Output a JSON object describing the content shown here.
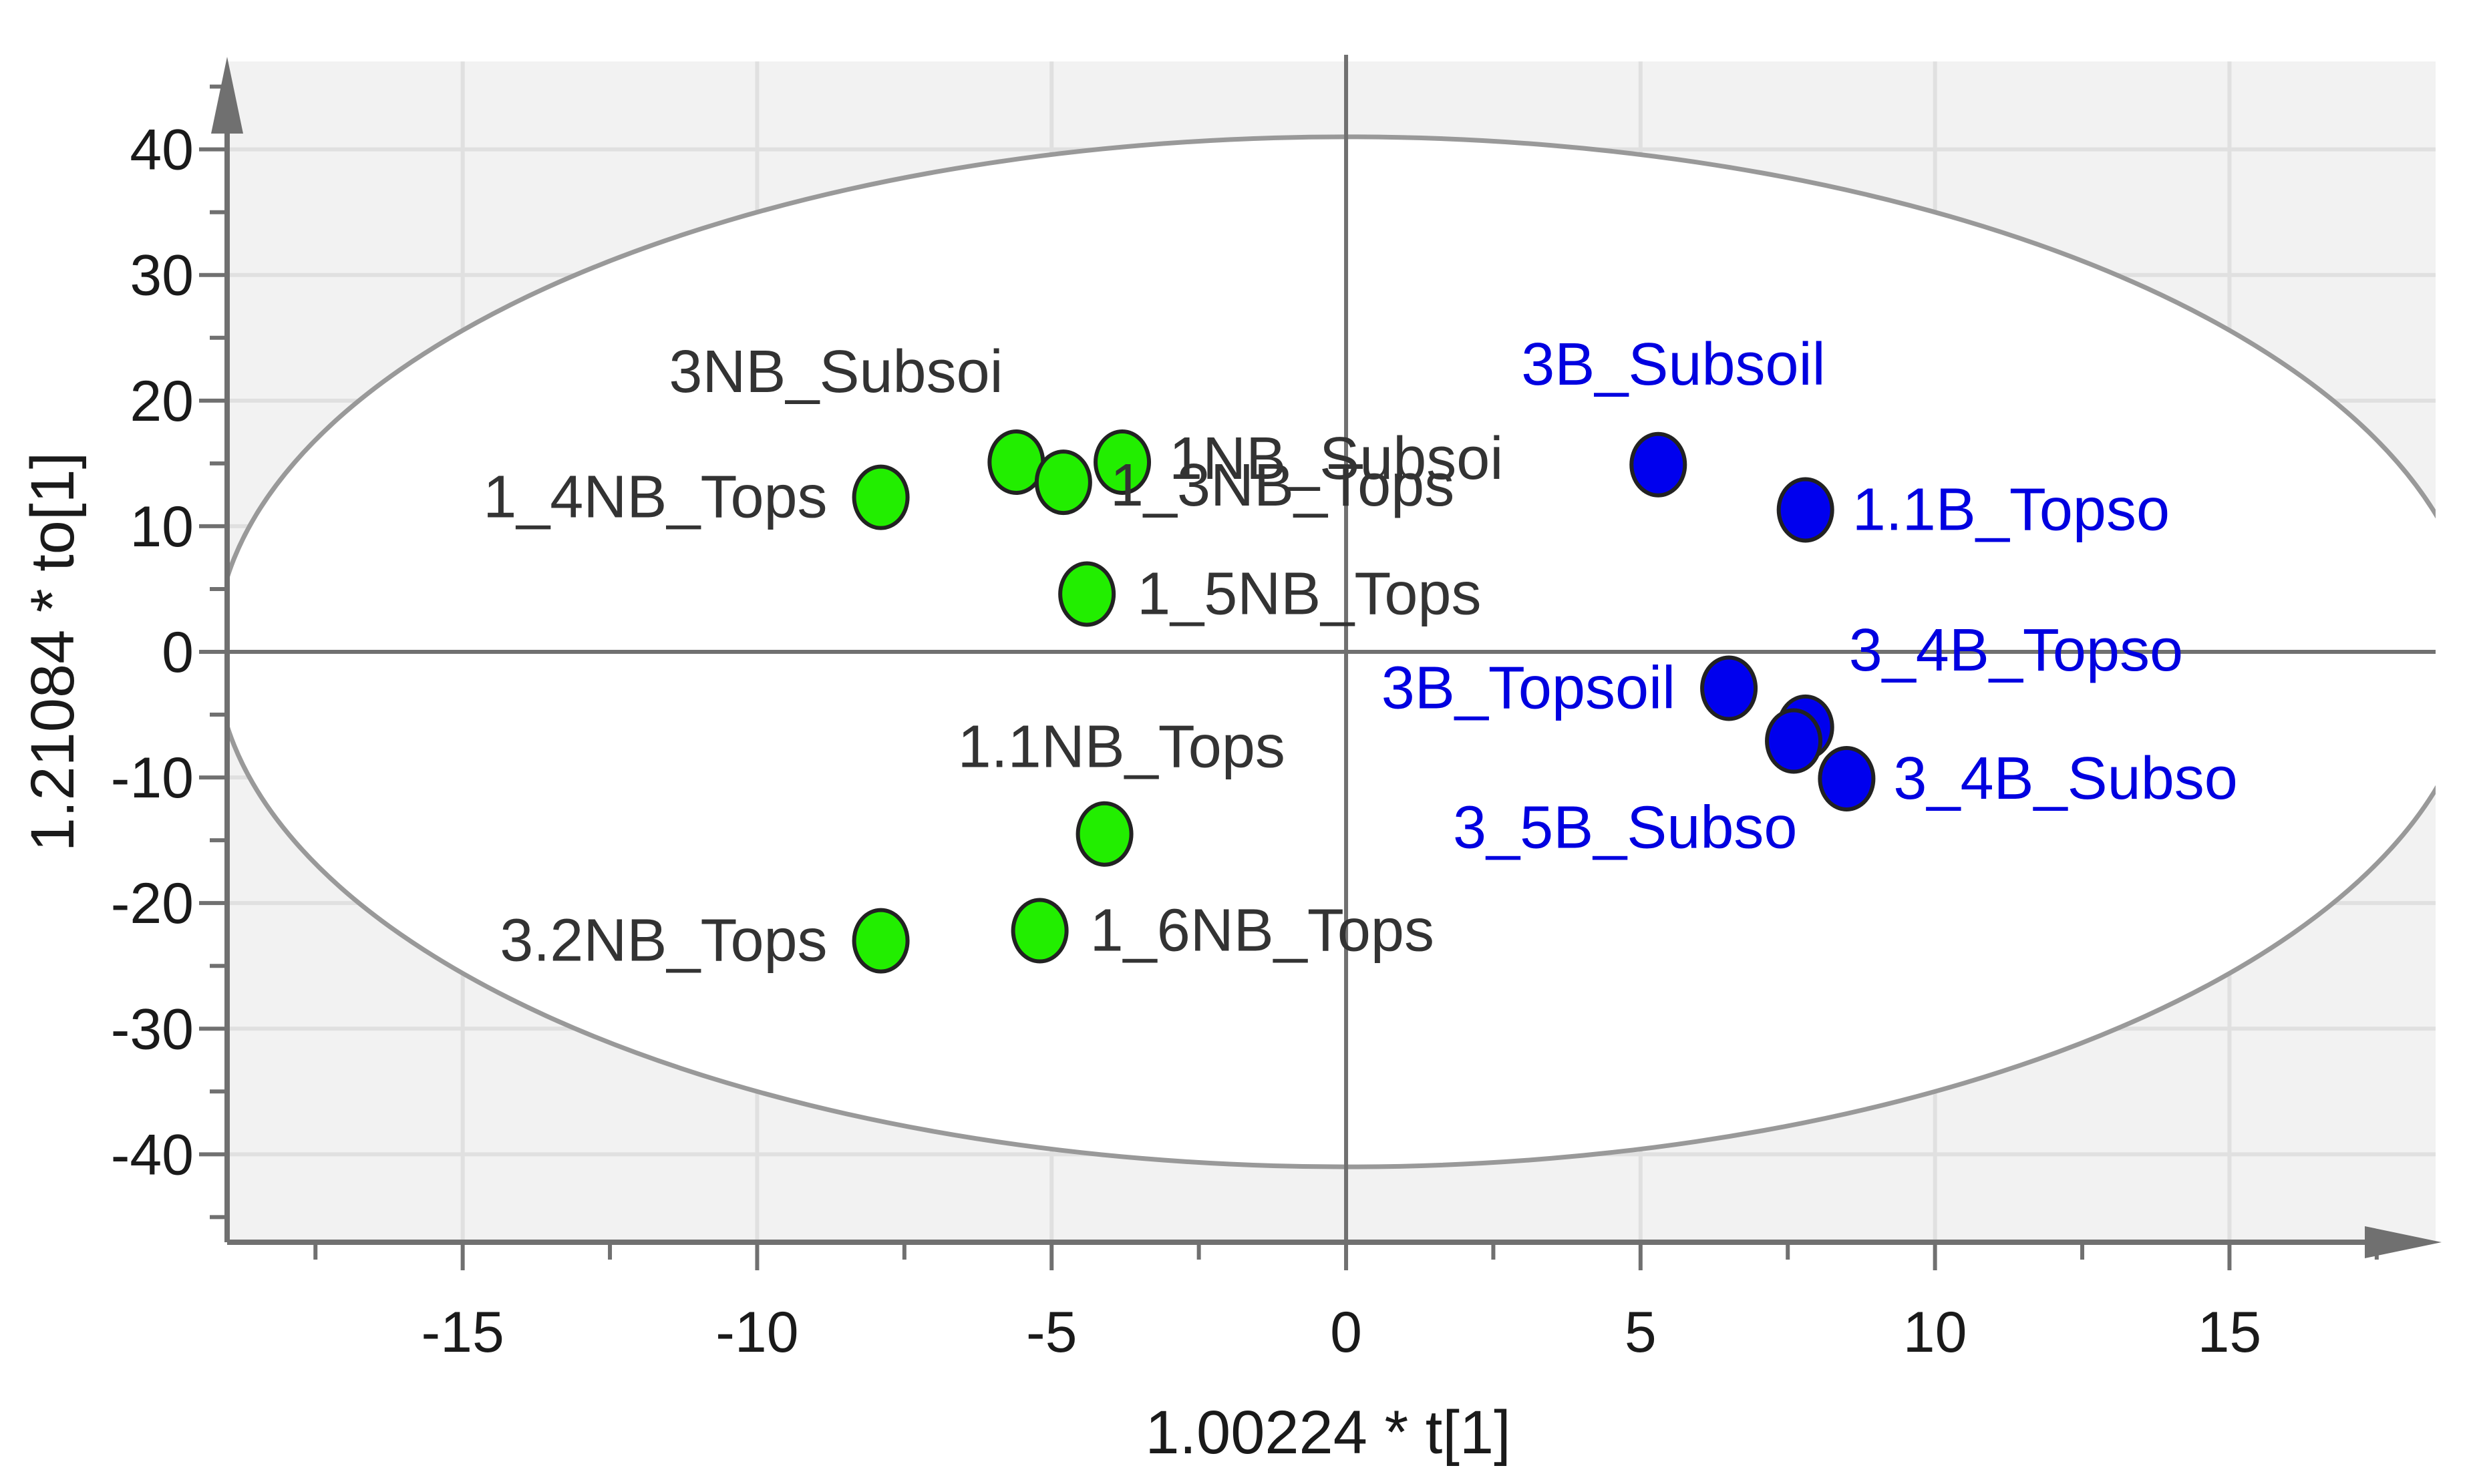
{
  "chart_data": {
    "type": "scatter",
    "xlabel": "1.00224 * t[1]",
    "ylabel": "1.21084 * to[1]",
    "xlim": [
      -19,
      18.5
    ],
    "ylim": [
      -47,
      47
    ],
    "xticks": [
      -15,
      -10,
      -5,
      0,
      5,
      10,
      15
    ],
    "yticks": [
      40,
      30,
      20,
      10,
      0,
      -10,
      -20,
      -30,
      -40
    ],
    "grid": true,
    "ellipse": {
      "cx": 0,
      "cy": 0,
      "rx": 19.2,
      "ry": 41
    },
    "colors": {
      "non_burned": "#22ee00",
      "burned": "#0000ee",
      "non_burned_label": "#333333",
      "burned_label": "#0000e0",
      "plot_background": "#f2f2f2",
      "ellipse_fill": "#ffffff",
      "ellipse_stroke": "#999999",
      "grid": "#e0e0e0",
      "axis": "#707070"
    },
    "series": [
      {
        "group": "non_burned",
        "points": [
          {
            "label": "1_4NB_Tops",
            "x": -7.9,
            "y": 12.3
          },
          {
            "label": "3NB_Subsoi",
            "x": -5.6,
            "y": 15.1
          },
          {
            "label": "1_3NB_Tops",
            "x": -4.8,
            "y": 13.5
          },
          {
            "label": "1NB_Subsoi",
            "x": -3.8,
            "y": 15.1
          },
          {
            "label": "1_5NB_Tops",
            "x": -4.4,
            "y": 4.6
          },
          {
            "label": "1.1NB_Tops",
            "x": -4.1,
            "y": -14.5
          },
          {
            "label": "1_6NB_Tops",
            "x": -5.2,
            "y": -22.2
          },
          {
            "label": "3.2NB_Tops",
            "x": -7.9,
            "y": -23.0
          }
        ]
      },
      {
        "group": "burned",
        "points": [
          {
            "label": "3B_Subsoil",
            "x": 5.3,
            "y": 14.9
          },
          {
            "label": "1.1B_Topso",
            "x": 7.8,
            "y": 11.3
          },
          {
            "label": "3B_Topsoil",
            "x": 6.5,
            "y": -2.9
          },
          {
            "label": "3_4B_Topso",
            "x": 7.8,
            "y": -6.0
          },
          {
            "label": "3_5B_Subso",
            "x": 7.6,
            "y": -7.1
          },
          {
            "label": "3_4B_Subso",
            "x": 8.5,
            "y": -10.1
          }
        ]
      }
    ]
  }
}
